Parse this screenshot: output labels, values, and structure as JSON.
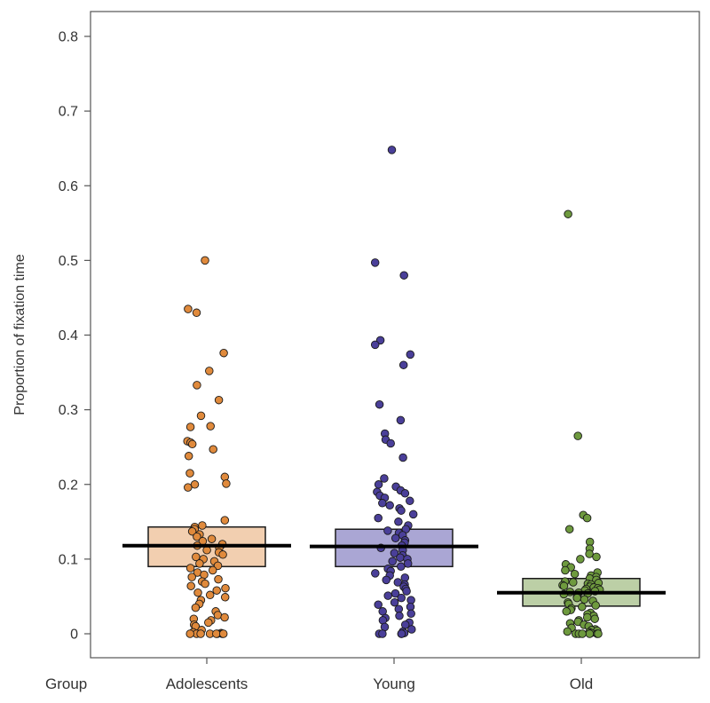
{
  "chart_data": {
    "type": "scatter",
    "ylabel": "Proportion of fixation time",
    "xlabel": "Group",
    "ylim": [
      0,
      0.8
    ],
    "yticks": [
      "0",
      "0.1",
      "0.2",
      "0.3",
      "0.4",
      "0.5",
      "0.6",
      "0.7",
      "0.8"
    ],
    "categories": [
      "Adolescents",
      "Young",
      "Old"
    ],
    "grid": false,
    "groups": [
      {
        "name": "Adolescents",
        "mean": 0.118,
        "box_low": 0.09,
        "box_high": 0.143,
        "fill": "#f2cfb0",
        "point_color": "#e08a3c",
        "values": [
          0.5,
          0.435,
          0.43,
          0.376,
          0.352,
          0.333,
          0.313,
          0.292,
          0.278,
          0.277,
          0.258,
          0.256,
          0.254,
          0.247,
          0.238,
          0.215,
          0.21,
          0.201,
          0.2,
          0.196,
          0.152,
          0.145,
          0.143,
          0.14,
          0.137,
          0.133,
          0.13,
          0.127,
          0.124,
          0.12,
          0.118,
          0.115,
          0.112,
          0.109,
          0.106,
          0.103,
          0.1,
          0.097,
          0.094,
          0.091,
          0.088,
          0.085,
          0.082,
          0.079,
          0.076,
          0.073,
          0.07,
          0.067,
          0.064,
          0.061,
          0.058,
          0.055,
          0.052,
          0.049,
          0.045,
          0.04,
          0.035,
          0.03,
          0.025,
          0.022,
          0.02,
          0.018,
          0.015,
          0.012,
          0.01,
          0.005,
          0.002,
          0.001,
          0,
          0,
          0,
          0,
          0,
          0,
          0,
          0
        ]
      },
      {
        "name": "Young",
        "mean": 0.117,
        "box_low": 0.09,
        "box_high": 0.14,
        "fill": "#aaa6d4",
        "point_color": "#4a3f99",
        "values": [
          0.648,
          0.497,
          0.48,
          0.393,
          0.387,
          0.374,
          0.36,
          0.307,
          0.286,
          0.268,
          0.26,
          0.255,
          0.236,
          0.208,
          0.2,
          0.197,
          0.192,
          0.19,
          0.188,
          0.185,
          0.182,
          0.178,
          0.175,
          0.172,
          0.168,
          0.165,
          0.16,
          0.155,
          0.15,
          0.145,
          0.14,
          0.138,
          0.135,
          0.132,
          0.128,
          0.125,
          0.122,
          0.118,
          0.115,
          0.112,
          0.108,
          0.105,
          0.102,
          0.1,
          0.097,
          0.094,
          0.09,
          0.087,
          0.084,
          0.081,
          0.078,
          0.075,
          0.072,
          0.069,
          0.066,
          0.063,
          0.06,
          0.057,
          0.054,
          0.051,
          0.048,
          0.045,
          0.042,
          0.039,
          0.036,
          0.033,
          0.03,
          0.027,
          0.024,
          0.021,
          0.018,
          0.015,
          0.012,
          0.009,
          0.006,
          0.003,
          0.001,
          0,
          0,
          0,
          0
        ]
      },
      {
        "name": "Old",
        "mean": 0.055,
        "box_low": 0.037,
        "box_high": 0.074,
        "fill": "#bccfa6",
        "point_color": "#6e9a3e",
        "values": [
          0.562,
          0.265,
          0.159,
          0.155,
          0.14,
          0.123,
          0.114,
          0.107,
          0.103,
          0.1,
          0.093,
          0.089,
          0.085,
          0.082,
          0.08,
          0.078,
          0.076,
          0.074,
          0.072,
          0.07,
          0.069,
          0.068,
          0.067,
          0.066,
          0.065,
          0.064,
          0.063,
          0.062,
          0.061,
          0.06,
          0.059,
          0.058,
          0.057,
          0.056,
          0.055,
          0.054,
          0.053,
          0.052,
          0.05,
          0.048,
          0.046,
          0.044,
          0.042,
          0.04,
          0.038,
          0.036,
          0.034,
          0.032,
          0.03,
          0.028,
          0.026,
          0.024,
          0.022,
          0.02,
          0.018,
          0.016,
          0.014,
          0.012,
          0.01,
          0.008,
          0.006,
          0.005,
          0.004,
          0.003,
          0.002,
          0.001,
          0,
          0,
          0,
          0,
          0,
          0
        ]
      }
    ]
  }
}
